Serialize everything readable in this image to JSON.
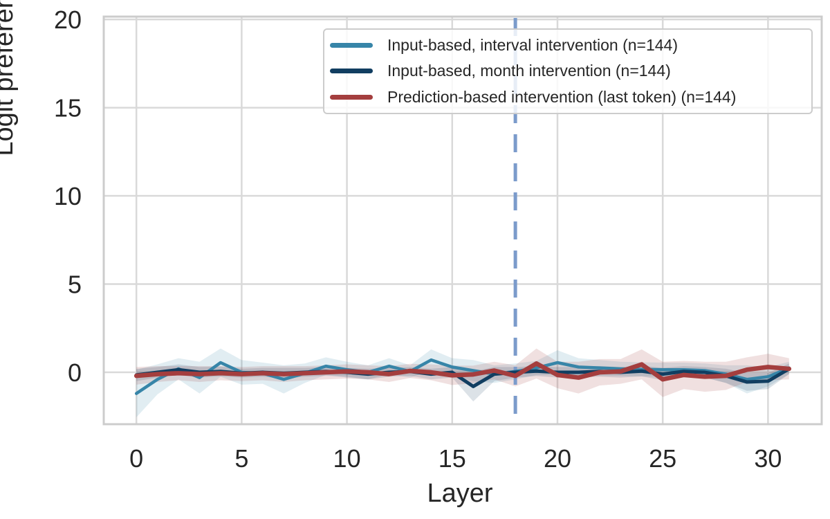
{
  "figure": {
    "background": "#ffffff",
    "text_color": "#262626",
    "grid_color": "#d9d9d9",
    "spine_color": "#cccccc"
  },
  "chart_data": {
    "type": "line",
    "title": "",
    "xlabel": "Layer",
    "ylabel": "Logit preference diff",
    "xlim": [
      -1.55,
      32.55
    ],
    "ylim": [
      -2.94,
      20.16
    ],
    "xticks": [
      0,
      5,
      10,
      15,
      20,
      25,
      30
    ],
    "yticks": [
      0,
      5,
      10,
      15,
      20
    ],
    "grid": true,
    "legend_position": "upper right",
    "x": [
      0,
      1,
      2,
      3,
      4,
      5,
      6,
      7,
      8,
      9,
      10,
      11,
      12,
      13,
      14,
      15,
      16,
      17,
      18,
      19,
      20,
      21,
      22,
      23,
      24,
      25,
      26,
      27,
      28,
      29,
      30,
      31
    ],
    "series": [
      {
        "name": "Input-based, interval intervention (n=144)",
        "color": "#3785a8",
        "line_width": 4.5,
        "band_opacity": 0.15,
        "values": [
          -1.2,
          -0.4,
          0.2,
          -0.3,
          0.55,
          0.0,
          -0.05,
          -0.4,
          -0.05,
          0.35,
          0.15,
          0.0,
          0.35,
          0.05,
          0.7,
          0.3,
          0.1,
          -0.1,
          0.05,
          0.25,
          0.55,
          0.3,
          0.25,
          0.2,
          0.17,
          0.15,
          0.15,
          0.1,
          -0.1,
          -0.4,
          -0.25,
          0.25
        ],
        "band_half": [
          1.35,
          0.85,
          0.6,
          0.9,
          0.8,
          0.7,
          0.6,
          0.8,
          0.55,
          0.5,
          0.45,
          0.4,
          0.45,
          0.35,
          0.6,
          0.5,
          0.6,
          0.5,
          0.45,
          0.4,
          0.7,
          0.5,
          0.45,
          0.4,
          0.4,
          0.4,
          0.4,
          0.4,
          0.5,
          0.8,
          0.55,
          0.35
        ]
      },
      {
        "name": "Input-based, month intervention (n=144)",
        "color": "#113e61",
        "line_width": 5,
        "band_opacity": 0.15,
        "values": [
          -0.15,
          0.0,
          0.15,
          0.0,
          0.05,
          -0.05,
          0.0,
          -0.05,
          0.0,
          0.05,
          0.0,
          -0.1,
          0.0,
          0.05,
          -0.1,
          0.0,
          -0.8,
          -0.1,
          0.0,
          0.07,
          0.0,
          0.0,
          0.05,
          0.0,
          0.07,
          -0.1,
          0.05,
          0.0,
          -0.2,
          -0.55,
          -0.5,
          0.2
        ],
        "band_half": [
          0.35,
          0.3,
          0.3,
          0.3,
          0.28,
          0.25,
          0.25,
          0.3,
          0.25,
          0.25,
          0.25,
          0.3,
          0.25,
          0.25,
          0.3,
          0.3,
          0.85,
          0.4,
          0.3,
          0.28,
          0.3,
          0.3,
          0.3,
          0.3,
          0.3,
          0.35,
          0.3,
          0.3,
          0.4,
          0.5,
          0.45,
          0.3
        ]
      },
      {
        "name": "Prediction-based intervention (last token) (n=144)",
        "color": "#a43e3e",
        "line_width": 6.5,
        "band_opacity": 0.16,
        "values": [
          -0.2,
          -0.1,
          -0.05,
          -0.1,
          -0.05,
          -0.1,
          -0.05,
          -0.1,
          -0.05,
          0.0,
          0.05,
          0.0,
          -0.1,
          0.08,
          0.0,
          -0.17,
          -0.12,
          0.1,
          -0.2,
          0.5,
          -0.15,
          -0.3,
          0.0,
          0.05,
          0.45,
          -0.4,
          -0.15,
          -0.25,
          -0.2,
          0.15,
          0.3,
          0.2
        ],
        "band_half": [
          0.5,
          0.45,
          0.4,
          0.45,
          0.4,
          0.4,
          0.4,
          0.45,
          0.4,
          0.4,
          0.4,
          0.4,
          0.45,
          0.4,
          0.45,
          0.55,
          0.5,
          0.5,
          0.6,
          0.85,
          0.75,
          0.9,
          0.75,
          0.7,
          0.85,
          1.0,
          0.8,
          0.85,
          0.8,
          0.7,
          0.75,
          0.6
        ]
      }
    ],
    "vline": {
      "x": 18,
      "color": "#7b9bcb",
      "style": "dashed",
      "width": 5
    }
  }
}
